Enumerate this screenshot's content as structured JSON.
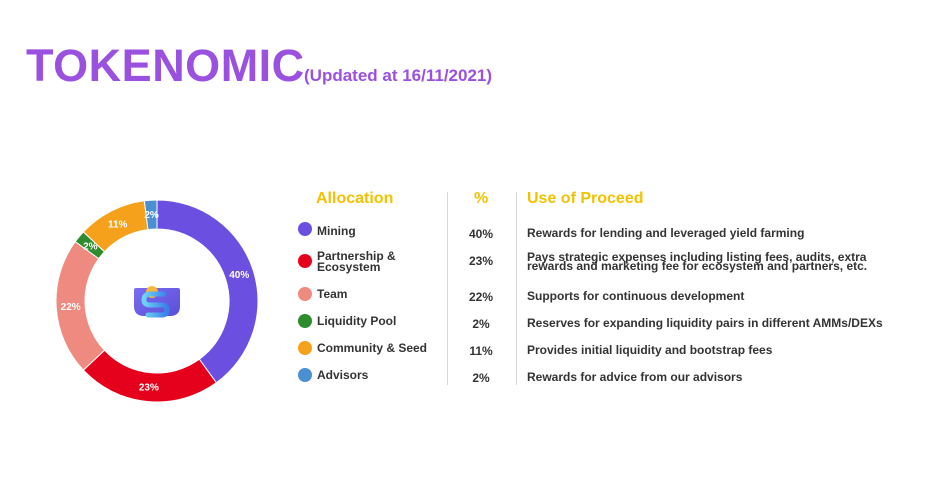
{
  "header": {
    "title": "TOKENOMIC",
    "subtitle": "(Updated at 16/11/2021)"
  },
  "table": {
    "col_allocation": "Allocation",
    "col_percent": "%",
    "col_use": "Use of Proceed"
  },
  "colors": {
    "title": "#9b51e0",
    "header": "#f2c200",
    "mining": "#6b4fe0",
    "partnership": "#e5001b",
    "team": "#ee8a80",
    "liquidity": "#2e8b2e",
    "community": "#f5a11c",
    "advisors": "#4a8fd1"
  },
  "logo": {
    "icon": "stackos-logo-icon"
  },
  "chart_data": {
    "type": "pie",
    "donut": true,
    "title": "",
    "categories": [
      "Mining",
      "Partnership & Ecosystem",
      "Team",
      "Liquidity Pool",
      "Community & Seed",
      "Advisors"
    ],
    "values": [
      40,
      23,
      22,
      2,
      11,
      2
    ],
    "data_labels": [
      "40%",
      "23%",
      "22%",
      "2%",
      "11%",
      "2%"
    ],
    "colors": [
      "#6b4fe0",
      "#e5001b",
      "#ee8a80",
      "#2e8b2e",
      "#f5a11c",
      "#4a8fd1"
    ],
    "start": "top",
    "direction": "clockwise",
    "order": [
      0,
      1,
      2,
      3,
      4,
      5
    ]
  },
  "rows": [
    {
      "label_lines": [
        "Mining"
      ],
      "percent": "40%",
      "use_lines": [
        "Rewards for lending and leveraged yield farming"
      ]
    },
    {
      "label_lines": [
        "Partnership &",
        "Ecosystem"
      ],
      "percent": "23%",
      "use_lines": [
        "Pays strategic expenses including listing fees, audits, extra",
        "rewards and marketing fee for ecosystem and partners, etc."
      ]
    },
    {
      "label_lines": [
        "Team"
      ],
      "percent": "22%",
      "use_lines": [
        "Supports for continuous development"
      ]
    },
    {
      "label_lines": [
        "Liquidity Pool"
      ],
      "percent": "2%",
      "use_lines": [
        "Reserves for expanding liquidity pairs in different AMMs/DEXs"
      ]
    },
    {
      "label_lines": [
        "Community & Seed"
      ],
      "percent": "11%",
      "use_lines": [
        "Provides initial liquidity and bootstrap fees"
      ]
    },
    {
      "label_lines": [
        "Advisors"
      ],
      "percent": "2%",
      "use_lines": [
        "Rewards for advice from our advisors"
      ]
    }
  ]
}
